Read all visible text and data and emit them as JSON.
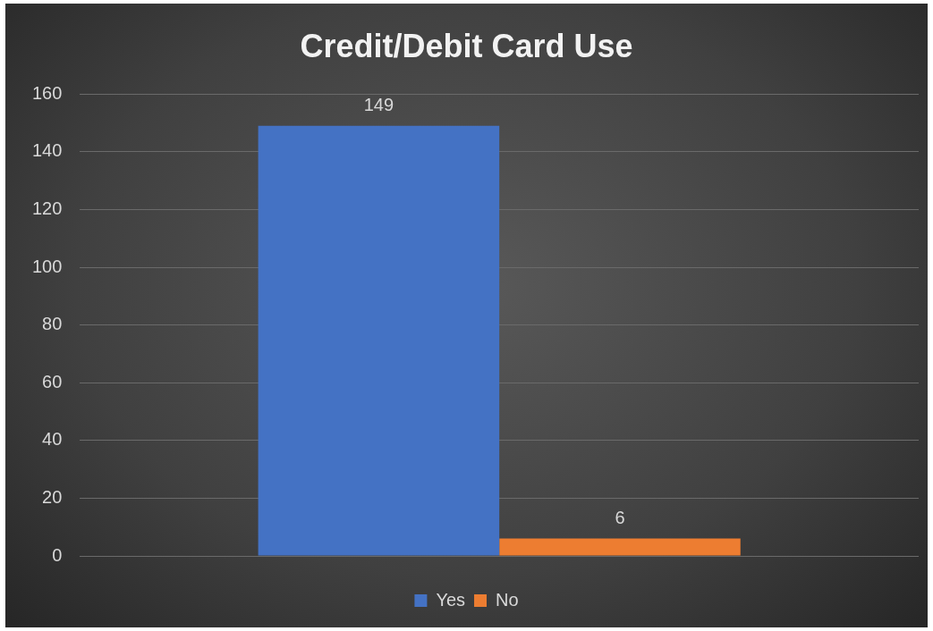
{
  "chart_data": {
    "type": "bar",
    "title": "Credit/Debit Card Use",
    "categories": [
      null
    ],
    "series": [
      {
        "name": "Yes",
        "color": "#4472c4",
        "values": [
          149
        ]
      },
      {
        "name": "No",
        "color": "#ed7d31",
        "values": [
          6
        ]
      }
    ],
    "ylim": [
      0,
      160
    ],
    "yticks": [
      0,
      20,
      40,
      60,
      80,
      100,
      120,
      140,
      160
    ],
    "grid": "y",
    "legend": "bottom",
    "data_labels": true
  }
}
